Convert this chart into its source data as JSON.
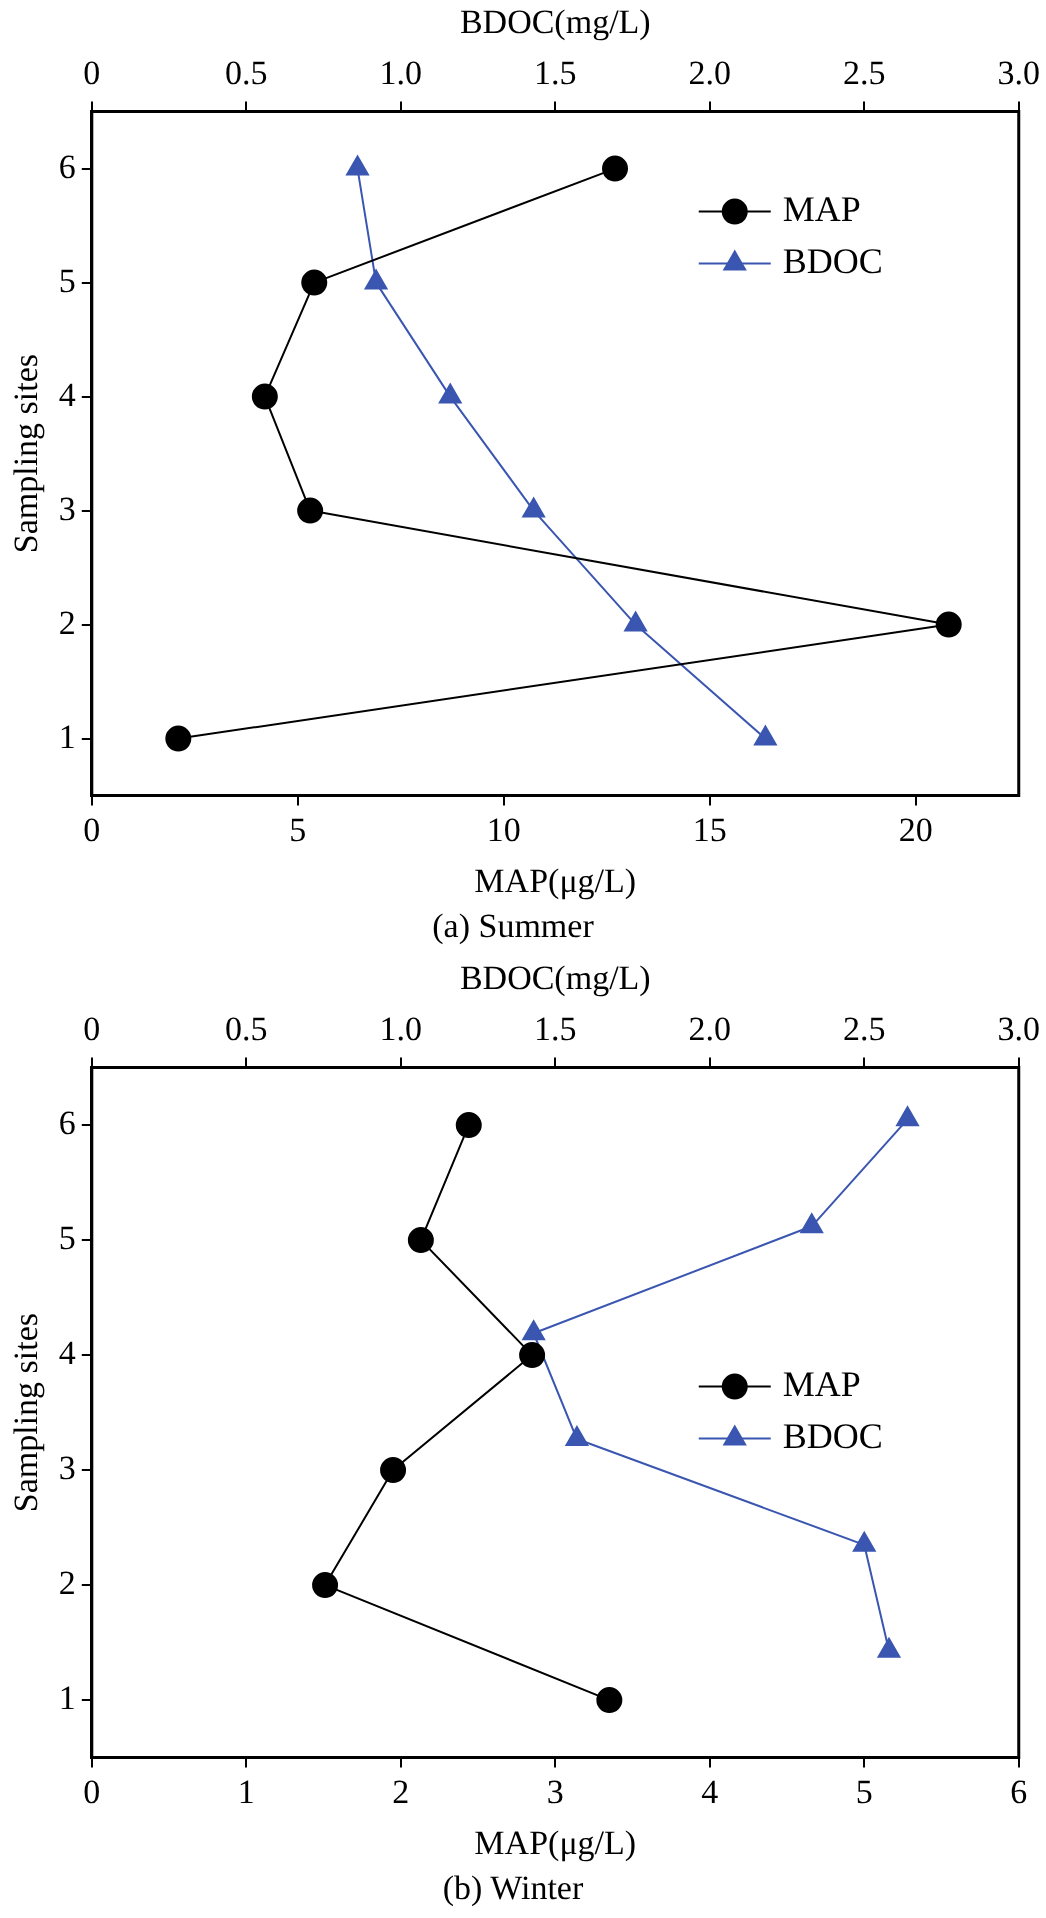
{
  "chart_data": [
    {
      "type": "line",
      "title": "(a) Summer",
      "xlabel": "MAP(μg/L)",
      "x2label": "BDOC(mg/L)",
      "ylabel": "Sampling sites",
      "xlim": [
        0,
        22.5
      ],
      "xticks": [
        0,
        5,
        10,
        15,
        20
      ],
      "x2lim": [
        0,
        3.0
      ],
      "x2ticks": [
        0,
        0.5,
        {
          "value": 1,
          "label": "1.0"
        },
        1.5,
        {
          "value": 2,
          "label": "2.0"
        },
        2.5,
        {
          "value": 3,
          "label": "3.0"
        }
      ],
      "ylim": [
        0.5,
        6.5
      ],
      "yticks": [
        1,
        2,
        3,
        4,
        5,
        6
      ],
      "grid": false,
      "legend": "top right",
      "series": [
        {
          "name": "MAP",
          "color": "#000000",
          "marker": "circle",
          "x": [
            2.1,
            20.8,
            5.3,
            4.2,
            5.4,
            12.7
          ],
          "values": [
            1,
            2,
            3,
            4,
            5,
            6
          ]
        },
        {
          "name": "BDOC",
          "color": "#3a56b0",
          "marker": "triangle",
          "axis": "x2",
          "x": [
            2.18,
            1.76,
            1.43,
            1.16,
            0.92,
            0.86
          ],
          "values": [
            1,
            2,
            3,
            4,
            5,
            6
          ]
        }
      ]
    },
    {
      "type": "line",
      "title": "(b) Winter",
      "xlabel": "MAP(μg/L)",
      "x2label": "BDOC(mg/L)",
      "ylabel": "Sampling sites",
      "xlim": [
        0,
        6
      ],
      "xticks": [
        0,
        1,
        2,
        3,
        4,
        5,
        6
      ],
      "x2lim": [
        0,
        3.0
      ],
      "x2ticks": [
        0,
        0.5,
        {
          "value": 1,
          "label": "1.0"
        },
        1.5,
        {
          "value": 2,
          "label": "2.0"
        },
        2.5,
        {
          "value": 3,
          "label": "3.0"
        }
      ],
      "ylim": [
        0.5,
        6.5
      ],
      "yticks": [
        1,
        2,
        3,
        4,
        5,
        6
      ],
      "grid": false,
      "legend": "right",
      "series": [
        {
          "name": "MAP",
          "color": "#000000",
          "marker": "circle",
          "x": [
            3.35,
            1.51,
            1.95,
            2.85,
            2.13,
            2.44
          ],
          "values": [
            1,
            2,
            3,
            4,
            5,
            6
          ]
        },
        {
          "name": "BDOC",
          "color": "#3a56b0",
          "marker": "triangle",
          "axis": "x2",
          "x": [
            2.58,
            2.5,
            1.57,
            1.43,
            2.33,
            2.64
          ],
          "values": [
            1.43,
            2.35,
            3.27,
            4.19,
            5.12,
            6.05
          ]
        }
      ]
    }
  ]
}
